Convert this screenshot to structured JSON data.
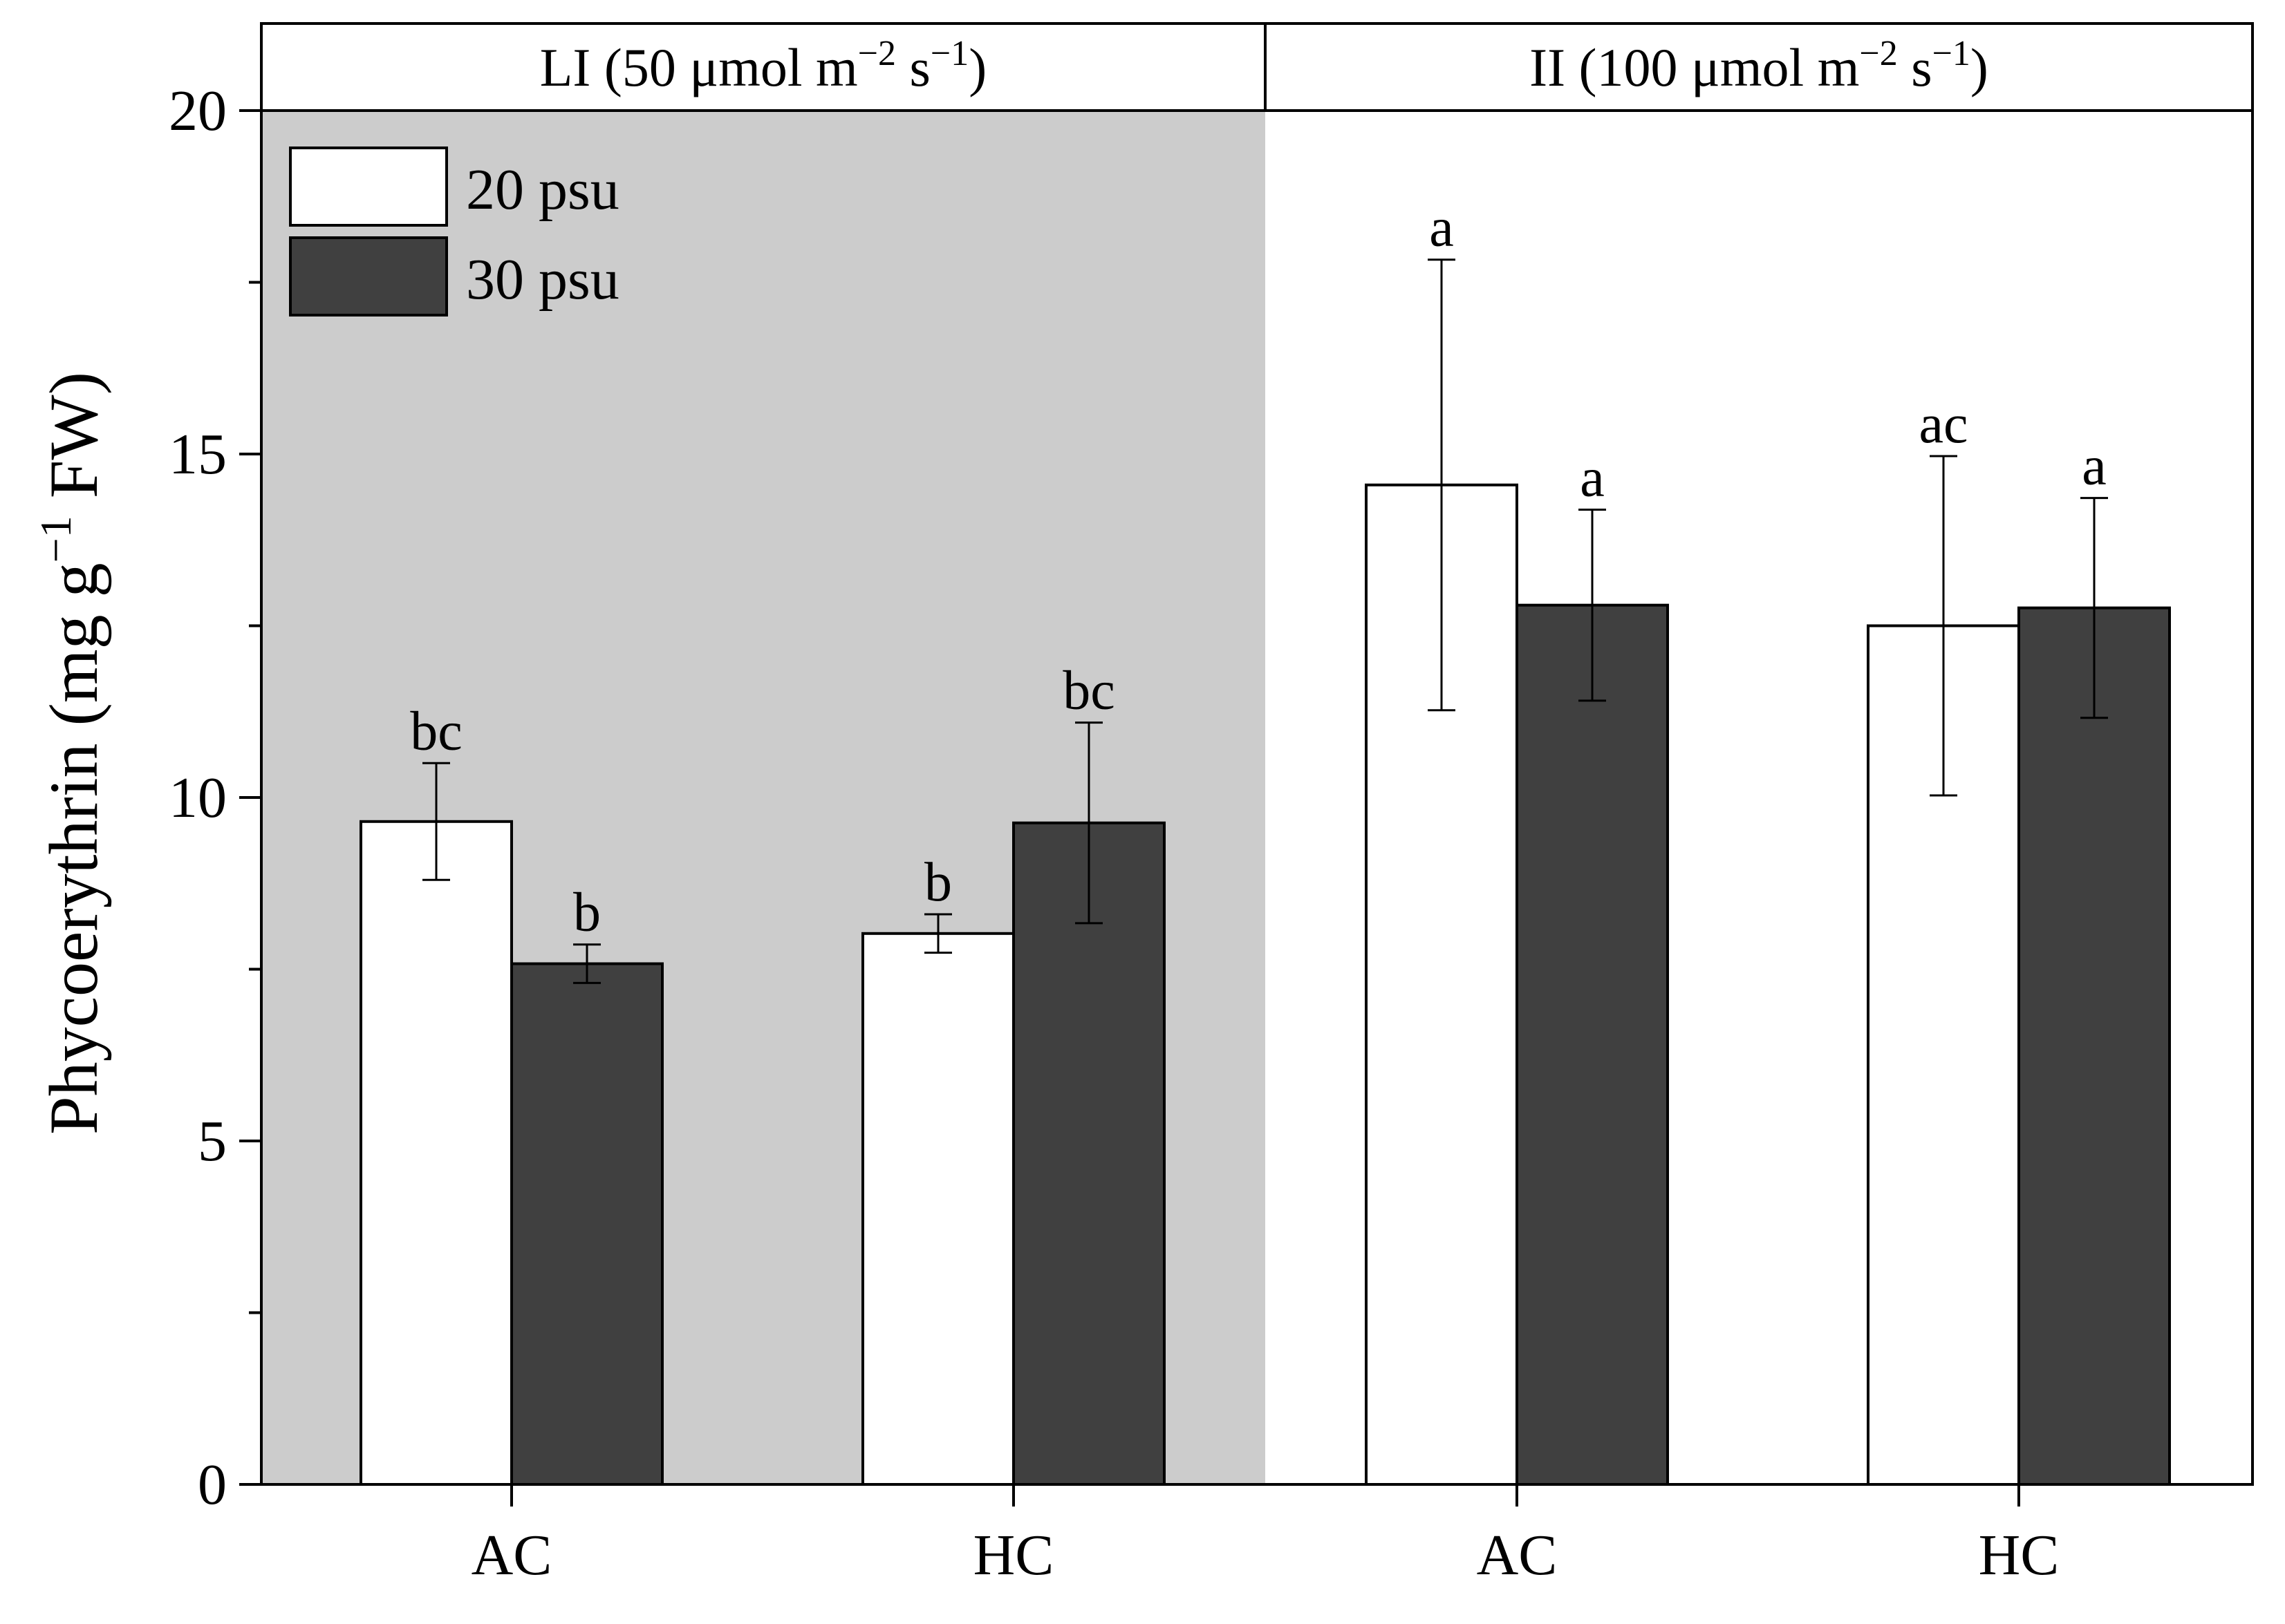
{
  "chart_data": {
    "type": "bar",
    "ylabel_main": "Phycoerythrin (mg g",
    "ylabel_sup": "−1",
    "ylabel_tail": " FW)",
    "ylim": [
      0,
      20
    ],
    "yticks": [
      0,
      5,
      10,
      15,
      20
    ],
    "panels": [
      {
        "label_main": "LI (50 μmol m",
        "sup1": "−2",
        "mid": " s",
        "sup2": "−1",
        "end": ")",
        "shaded": true
      },
      {
        "label_main": "II (100 μmol m",
        "sup1": "−2",
        "mid": " s",
        "sup2": "−1",
        "end": ")",
        "shaded": false
      }
    ],
    "categories": [
      "AC",
      "HC",
      "AC",
      "HC"
    ],
    "series": [
      {
        "name": "20 psu",
        "color": "#ffffff",
        "values": [
          9.65,
          8.02,
          14.55,
          12.5
        ],
        "errors": [
          0.85,
          0.28,
          3.28,
          2.47
        ],
        "letters": [
          "bc",
          "b",
          "a",
          "ac"
        ]
      },
      {
        "name": "30 psu",
        "color": "#404040",
        "values": [
          7.58,
          9.63,
          12.8,
          12.76
        ],
        "errors": [
          0.28,
          1.46,
          1.39,
          1.6
        ],
        "letters": [
          "b",
          "bc",
          "a",
          "a"
        ]
      }
    ],
    "legend_position": "top-left"
  }
}
